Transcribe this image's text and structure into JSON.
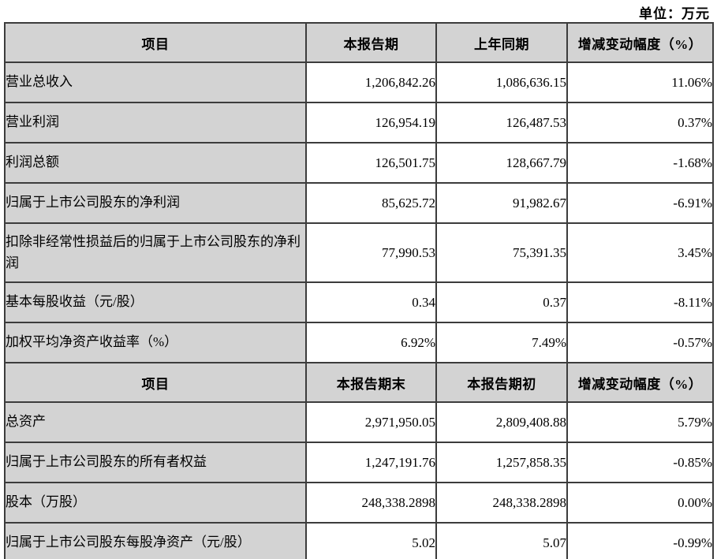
{
  "unit_label": "单位：万元",
  "section1": {
    "headers": {
      "item": "项目",
      "current": "本报告期",
      "prior": "上年同期",
      "change": "增减变动幅度（%）"
    },
    "rows": [
      {
        "label": "营业总收入",
        "current": "1,206,842.26",
        "prior": "1,086,636.15",
        "change": "11.06%"
      },
      {
        "label": "营业利润",
        "current": "126,954.19",
        "prior": "126,487.53",
        "change": "0.37%"
      },
      {
        "label": "利润总额",
        "current": "126,501.75",
        "prior": "128,667.79",
        "change": "-1.68%"
      },
      {
        "label": "归属于上市公司股东的净利润",
        "current": "85,625.72",
        "prior": "91,982.67",
        "change": "-6.91%"
      },
      {
        "label": "扣除非经常性损益后的归属于上市公司股东的净利润",
        "current": "77,990.53",
        "prior": "75,391.35",
        "change": "3.45%"
      },
      {
        "label": "基本每股收益（元/股）",
        "current": "0.34",
        "prior": "0.37",
        "change": "-8.11%"
      },
      {
        "label": "加权平均净资产收益率（%）",
        "current": "6.92%",
        "prior": "7.49%",
        "change": "-0.57%"
      }
    ]
  },
  "section2": {
    "headers": {
      "item": "项目",
      "current": "本报告期末",
      "prior": "本报告期初",
      "change": "增减变动幅度（%）"
    },
    "rows": [
      {
        "label": "总资产",
        "current": "2,971,950.05",
        "prior": "2,809,408.88",
        "change": "5.79%"
      },
      {
        "label": "归属于上市公司股东的所有者权益",
        "current": "1,247,191.76",
        "prior": "1,257,858.35",
        "change": "-0.85%"
      },
      {
        "label": "股本（万股）",
        "current": "248,338.2898",
        "prior": "248,338.2898",
        "change": "0.00%"
      },
      {
        "label": "归属于上市公司股东每股净资产（元/股）",
        "current": "5.02",
        "prior": "5.07",
        "change": "-0.99%"
      }
    ]
  },
  "colors": {
    "header_bg": "#d3d3d3",
    "label_bg": "#d3d3d3",
    "cell_bg": "#ffffff",
    "border": "#3c3c3c",
    "text": "#000000"
  }
}
